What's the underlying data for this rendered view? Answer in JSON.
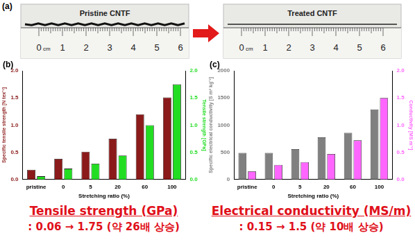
{
  "panel_a": {
    "label": "(a)",
    "photos": [
      {
        "caption": "Pristine CNTF"
      },
      {
        "caption": "Treated CNTF"
      }
    ],
    "ruler_unit": "cm",
    "ruler_labels": [
      0,
      1,
      2,
      3,
      4,
      5,
      6
    ]
  },
  "chart_data": [
    {
      "type": "bar",
      "title": "(b)",
      "xlabel": "Stretching ratio (%)",
      "ylabel": "Specific tensile strength [N tex⁻¹]",
      "y2label": "Tensile strength [GPa]",
      "categories": [
        "pristine",
        "0",
        "5",
        "20",
        "60",
        "100"
      ],
      "series": [
        {
          "color": "#8b1a1a",
          "values": [
            0.18,
            0.38,
            0.51,
            0.75,
            1.2,
            1.51
          ]
        },
        {
          "color": "#22dd22",
          "axis": "y2",
          "values": [
            0.06,
            0.2,
            0.29,
            0.44,
            1.0,
            1.75
          ]
        }
      ],
      "ylim": [
        0,
        2
      ],
      "yticks": [
        {
          "value": 0,
          "label": "0.0"
        },
        {
          "value": 0.5,
          "label": "0.5"
        },
        {
          "value": 1,
          "label": "1.0"
        },
        {
          "value": 1.5,
          "label": "1.5"
        },
        {
          "value": 2,
          "label": "2.0"
        }
      ],
      "y2lim": [
        0,
        2
      ],
      "y2ticks": [
        {
          "value": 0,
          "label": "0.0"
        },
        {
          "value": 0.5,
          "label": "0.5"
        },
        {
          "value": 1,
          "label": "1.0"
        },
        {
          "value": 1.5,
          "label": "1.5"
        },
        {
          "value": 2,
          "label": "2.0"
        }
      ],
      "grid": false
    },
    {
      "type": "bar",
      "title": "(c)",
      "xlabel": "Stretching ratio (%)",
      "ylabel": "Specific electrical conductivity [S m² kg⁻¹]",
      "y2label": "Conductivity [MS m⁻¹]",
      "categories": [
        "pristine",
        "0",
        "5",
        "20",
        "60",
        "100"
      ],
      "series": [
        {
          "color": "#808080",
          "values": [
            490,
            490,
            560,
            775,
            860,
            1290
          ]
        },
        {
          "color": "#ff66ff",
          "axis": "y2",
          "values": [
            0.15,
            0.27,
            0.32,
            0.47,
            0.72,
            1.5
          ]
        }
      ],
      "ylim": [
        0,
        2000
      ],
      "yticks": [
        0,
        500,
        1000,
        1500,
        2000
      ],
      "y2lim": [
        0,
        2
      ],
      "y2ticks": [
        {
          "value": 0,
          "label": "0.0"
        },
        {
          "value": 0.5,
          "label": "0.5"
        },
        {
          "value": 1,
          "label": "1.0"
        },
        {
          "value": 1.5,
          "label": "1.5"
        },
        {
          "value": 2,
          "label": "2.0"
        }
      ],
      "grid": false
    }
  ],
  "captions": [
    {
      "title": "Tensile strength (GPa)",
      "text": ": 0.06 → 1.75 (약 26배 상승)"
    },
    {
      "title": "Electrical conductivity (MS/m)",
      "text": ": 0.15 → 1.5 (약 10배 상승)"
    }
  ]
}
